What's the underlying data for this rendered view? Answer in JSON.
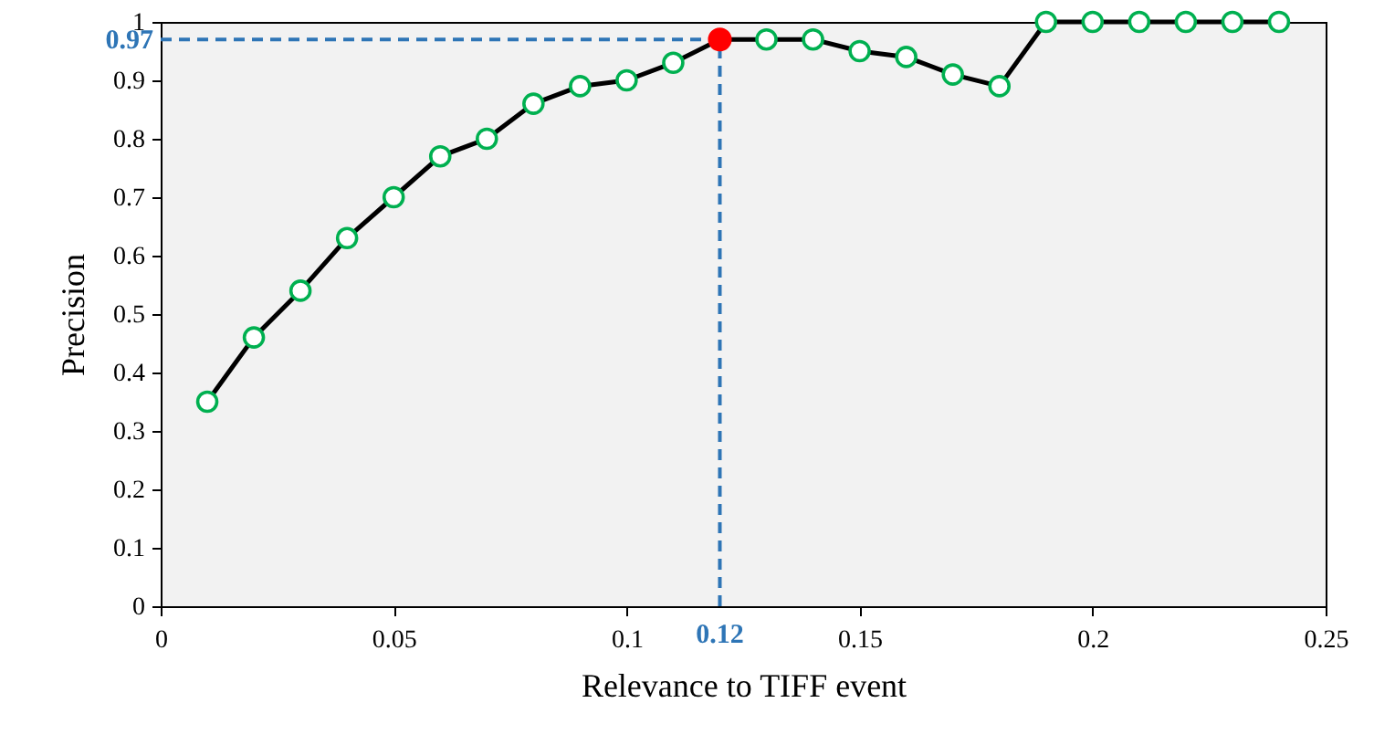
{
  "chart_data": {
    "type": "line",
    "xlabel": "Relevance to TIFF event",
    "ylabel": "Precision",
    "xlim": [
      0,
      0.25
    ],
    "xticks": [
      0,
      0.05,
      0.1,
      0.15,
      0.2,
      0.25
    ],
    "ylim": [
      0,
      1
    ],
    "yticks": [
      0,
      0.1,
      0.2,
      0.3,
      0.4,
      0.5,
      0.6,
      0.7,
      0.8,
      0.9,
      1
    ],
    "grid": false,
    "marker": "circle",
    "line_style": "solid",
    "series": [
      {
        "type": "line",
        "color": "#000000",
        "x": [
          0.01,
          0.02,
          0.03,
          0.04,
          0.05,
          0.06,
          0.07,
          0.08,
          0.09,
          0.1,
          0.11,
          0.12,
          0.13,
          0.14,
          0.15,
          0.16,
          0.17,
          0.18,
          0.19,
          0.2,
          0.21,
          0.22,
          0.23,
          0.24
        ],
        "values": [
          0.35,
          0.46,
          0.54,
          0.63,
          0.7,
          0.77,
          0.8,
          0.86,
          0.89,
          0.9,
          0.93,
          0.97,
          0.97,
          0.97,
          0.95,
          0.94,
          0.91,
          0.89,
          1,
          1,
          1,
          1,
          1,
          1
        ]
      },
      {
        "type": "scatter",
        "color": "#ff0000",
        "x": [
          0.12
        ],
        "values": [
          0.97
        ]
      }
    ],
    "ref_lines": [
      {
        "axis": "x",
        "value": 0.12,
        "label": "0.12",
        "color": "#2e75b6",
        "line_style": "dashed"
      },
      {
        "axis": "y",
        "value": 0.97,
        "label": "0.97",
        "color": "#2e75b6",
        "line_style": "dashed"
      }
    ]
  }
}
